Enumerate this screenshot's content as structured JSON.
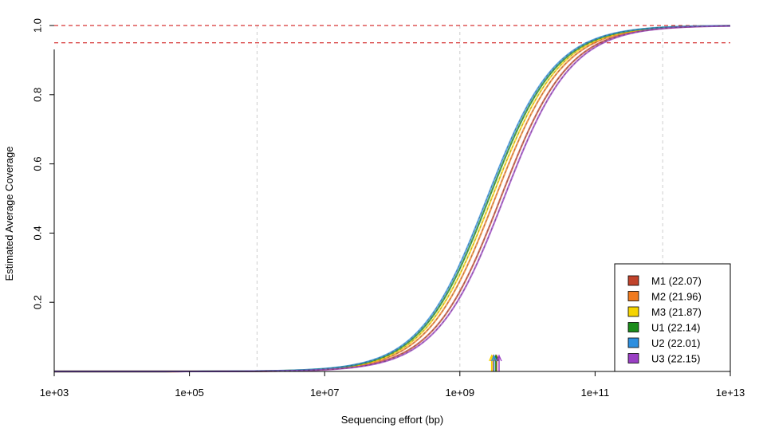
{
  "chart_data": {
    "type": "line",
    "title": "",
    "xlabel": "Sequencing effort (bp)",
    "ylabel": "Estimated Average Coverage",
    "x_scale": "log10",
    "xlim": [
      1000,
      10000000000000
    ],
    "ylim": [
      0,
      1
    ],
    "x_ticks": [
      {
        "value": 1000,
        "label": "1e+03"
      },
      {
        "value": 100000,
        "label": "1e+05"
      },
      {
        "value": 10000000,
        "label": "1e+07"
      },
      {
        "value": 1000000000,
        "label": "1e+09"
      },
      {
        "value": 100000000000,
        "label": "1e+11"
      },
      {
        "value": 10000000000000,
        "label": "1e+13"
      }
    ],
    "y_ticks": [
      {
        "value": 0.2,
        "label": "0.2"
      },
      {
        "value": 0.4,
        "label": "0.4"
      },
      {
        "value": 0.6,
        "label": "0.6"
      },
      {
        "value": 0.8,
        "label": "0.8"
      },
      {
        "value": 1.0,
        "label": "1.0"
      }
    ],
    "vertical_gridlines_x": [
      1000000,
      1000000000,
      1000000000000
    ],
    "reference_lines_y": [
      1.0,
      0.95
    ],
    "reference_line_color": "#CC0000",
    "grid": "vertical dashed",
    "legend_position": "bottom-right",
    "series": [
      {
        "name": "M1 (22.07)",
        "color": "#C1432B",
        "curve_shift_log10": 0.05,
        "marker_x": 3500000000
      },
      {
        "name": "M2 (21.96)",
        "color": "#F07A1F",
        "curve_shift_log10": -0.03,
        "marker_x": 3100000000
      },
      {
        "name": "M3 (21.87)",
        "color": "#F5D400",
        "curve_shift_log10": -0.08,
        "marker_x": 2950000000
      },
      {
        "name": "U1 (22.14)",
        "color": "#1A8C1A",
        "curve_shift_log10": -0.12,
        "marker_x": 3400000000
      },
      {
        "name": "U2 (22.01)",
        "color": "#2D8FE0",
        "curve_shift_log10": -0.15,
        "marker_x": 3200000000
      },
      {
        "name": "U3 (22.15)",
        "color": "#9A3FC4",
        "curve_shift_log10": 0.1,
        "marker_x": 3800000000
      }
    ],
    "coverage_model": {
      "midpoint_log10": 9.55,
      "slope_per_log10": 2.0
    }
  }
}
